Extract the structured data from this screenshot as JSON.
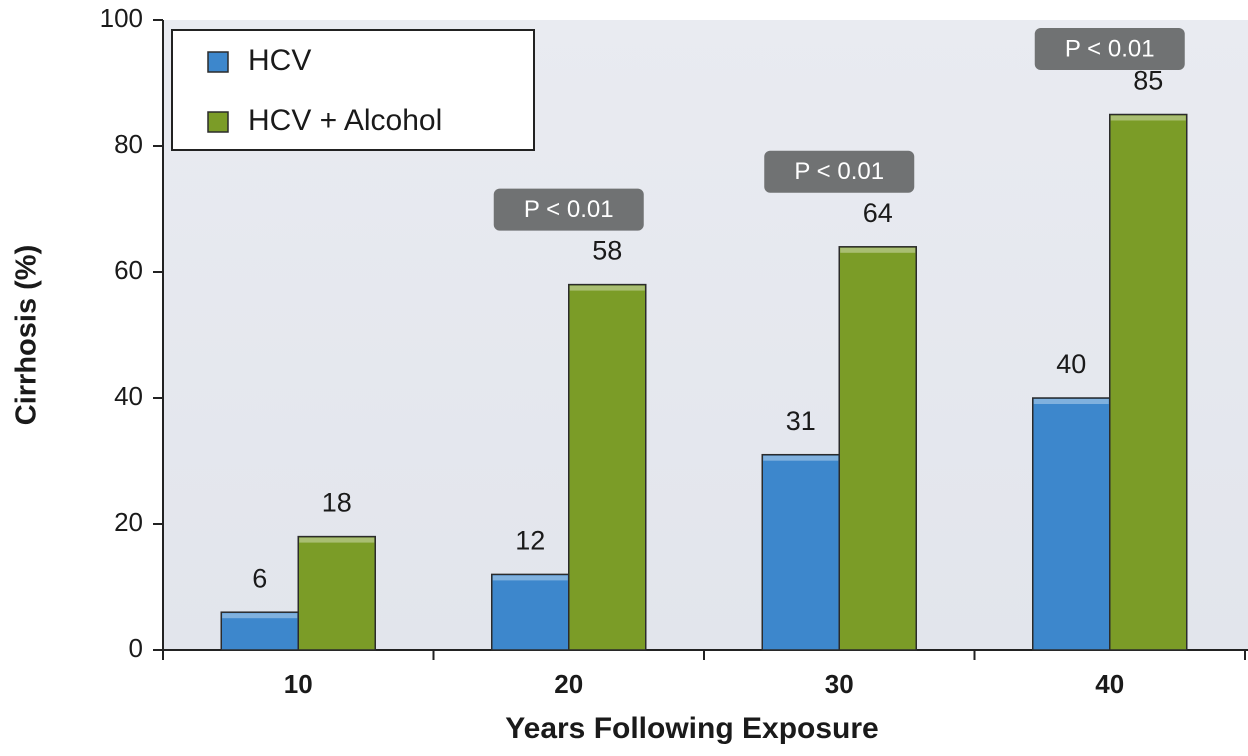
{
  "chart_data": {
    "type": "bar",
    "x_label": "Years Following Exposure",
    "y_label": "Cirrhosis (%)",
    "categories": [
      "10",
      "20",
      "30",
      "40"
    ],
    "series": [
      {
        "name": "HCV",
        "color": "#3d87cc",
        "values": [
          6,
          12,
          31,
          40
        ]
      },
      {
        "name": "HCV + Alcohol",
        "color": "#7b9c27",
        "values": [
          18,
          58,
          64,
          85
        ]
      }
    ],
    "annotations": [
      null,
      "P < 0.01",
      "P < 0.01",
      "P < 0.01"
    ],
    "ylim": [
      0,
      100
    ],
    "yticks": [
      0,
      20,
      40,
      60,
      80,
      100
    ],
    "legend": "upper left"
  }
}
